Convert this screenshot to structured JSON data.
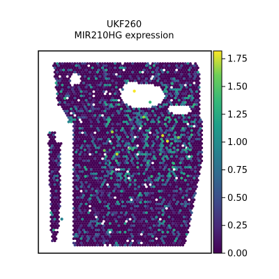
{
  "chart_data": {
    "type": "heatmap",
    "subtype": "spatial spot scatter",
    "title_line1": "UKF260",
    "title_line2": "MIR210HG expression",
    "colormap": "viridis",
    "colorbar": {
      "min": 0.0,
      "max": 1.82,
      "ticks": [
        "0.00",
        "0.25",
        "0.50",
        "0.75",
        "1.00",
        "1.25",
        "1.50",
        "1.75"
      ],
      "tick_values": [
        0.0,
        0.25,
        0.5,
        0.75,
        1.0,
        1.25,
        1.5,
        1.75
      ]
    },
    "axes_visible": false,
    "grid": false,
    "background_spot_value": 0.0,
    "highlight_spots": [
      {
        "x": 0.56,
        "y": 0.16,
        "v": 1.8
      },
      {
        "x": 0.77,
        "y": 0.43,
        "v": 1.75
      },
      {
        "x": 0.74,
        "y": 0.4,
        "v": 1.7
      },
      {
        "x": 0.45,
        "y": 0.5,
        "v": 1.65
      },
      {
        "x": 0.42,
        "y": 0.38,
        "v": 1.55
      },
      {
        "x": 0.62,
        "y": 0.3,
        "v": 1.5
      },
      {
        "x": 0.84,
        "y": 0.41,
        "v": 1.45
      },
      {
        "x": 0.37,
        "y": 0.48,
        "v": 1.4
      },
      {
        "x": 0.53,
        "y": 0.47,
        "v": 1.3
      },
      {
        "x": 0.81,
        "y": 0.55,
        "v": 1.2
      },
      {
        "x": 0.67,
        "y": 0.62,
        "v": 1.2
      },
      {
        "x": 0.25,
        "y": 0.62,
        "v": 1.1
      },
      {
        "x": 0.66,
        "y": 0.22,
        "v": 1.2
      },
      {
        "x": 0.8,
        "y": 0.12,
        "v": 1.1
      },
      {
        "x": 0.12,
        "y": 0.2,
        "v": 1.2
      },
      {
        "x": 0.6,
        "y": 0.76,
        "v": 1.0
      },
      {
        "x": 0.48,
        "y": 0.7,
        "v": 1.0
      },
      {
        "x": 0.9,
        "y": 0.47,
        "v": 1.0
      },
      {
        "x": 0.7,
        "y": 0.84,
        "v": 0.9
      },
      {
        "x": 0.28,
        "y": 0.74,
        "v": 0.9
      },
      {
        "x": 0.1,
        "y": 0.85,
        "v": 0.8
      },
      {
        "x": 0.38,
        "y": 0.55,
        "v": 0.8
      },
      {
        "x": 0.72,
        "y": 0.7,
        "v": 0.9
      },
      {
        "x": 0.86,
        "y": 0.6,
        "v": 0.9
      }
    ]
  }
}
